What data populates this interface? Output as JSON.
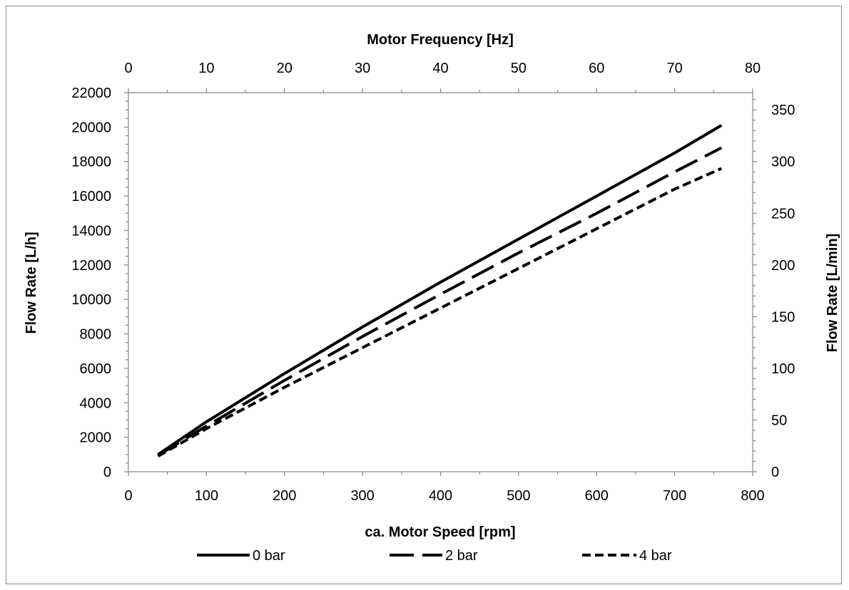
{
  "chart_data": {
    "type": "line",
    "xlabel": "ca. Motor Speed [rpm]",
    "x2label": "Motor Frequency [Hz]",
    "ylabel": "Flow Rate [L/h]",
    "y2label": "Flow Rate [L/min]",
    "xlim": [
      0,
      800
    ],
    "x2lim": [
      0,
      80
    ],
    "ylim": [
      0,
      22000
    ],
    "y2lim": [
      0,
      366.67
    ],
    "xticks": [
      "0",
      "100",
      "200",
      "300",
      "400",
      "500",
      "600",
      "700",
      "800"
    ],
    "x2ticks": [
      "0",
      "10",
      "20",
      "30",
      "40",
      "50",
      "60",
      "70",
      "80"
    ],
    "yticks": [
      "0",
      "2000",
      "4000",
      "6000",
      "8000",
      "10000",
      "12000",
      "14000",
      "16000",
      "18000",
      "20000",
      "22000"
    ],
    "y2ticks": [
      "0",
      "50",
      "100",
      "150",
      "200",
      "250",
      "300",
      "350"
    ],
    "grid": false,
    "legend_position": "bottom",
    "series": [
      {
        "name": "0 bar",
        "dash": "solid",
        "color": "#000000",
        "x": [
          38,
          100,
          200,
          300,
          400,
          500,
          600,
          700,
          760
        ],
        "y": [
          1000,
          2900,
          5700,
          8400,
          11000,
          13500,
          16000,
          18500,
          20100
        ]
      },
      {
        "name": "2 bar",
        "dash": "long-dash",
        "color": "#000000",
        "x": [
          38,
          100,
          200,
          300,
          400,
          500,
          600,
          700,
          760
        ],
        "y": [
          950,
          2650,
          5300,
          7850,
          10300,
          12700,
          15000,
          17400,
          18800
        ]
      },
      {
        "name": "4 bar",
        "dash": "short-dash",
        "color": "#000000",
        "x": [
          38,
          100,
          200,
          300,
          400,
          500,
          600,
          700,
          760
        ],
        "y": [
          900,
          2500,
          4900,
          7200,
          9500,
          11800,
          14100,
          16400,
          17600
        ]
      }
    ]
  }
}
